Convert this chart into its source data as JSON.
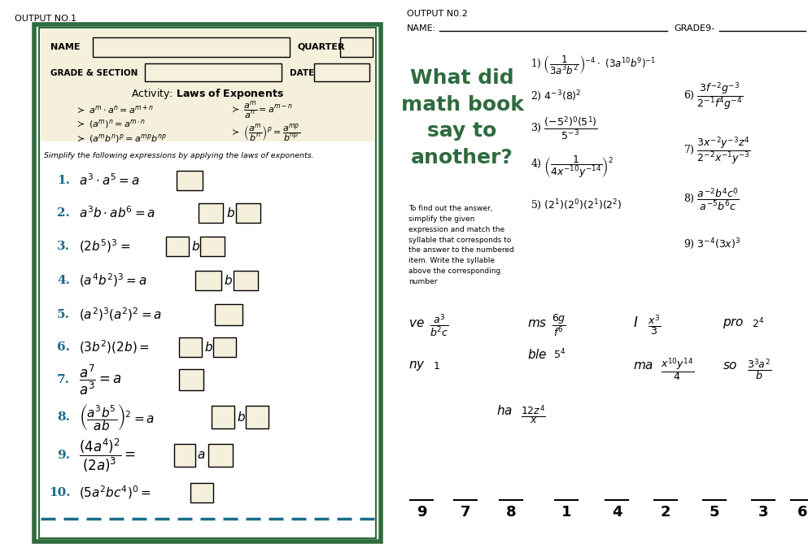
{
  "bg_color": "#ffffff",
  "left_border_color": "#2e6b3e",
  "header_bg": "#f5f0dc",
  "answer_box_color": "#f5f0dc",
  "problem_color": "#1a6b8a",
  "question_color": "#2e6b3e",
  "output1_label": "OUTPUT NO.1",
  "output2_label": "OUTPUT N0.2",
  "dashed_color": "#1a6b8a",
  "numbers": [
    "9",
    "7",
    "8",
    "1",
    "4",
    "2",
    "5",
    "3",
    "6"
  ]
}
